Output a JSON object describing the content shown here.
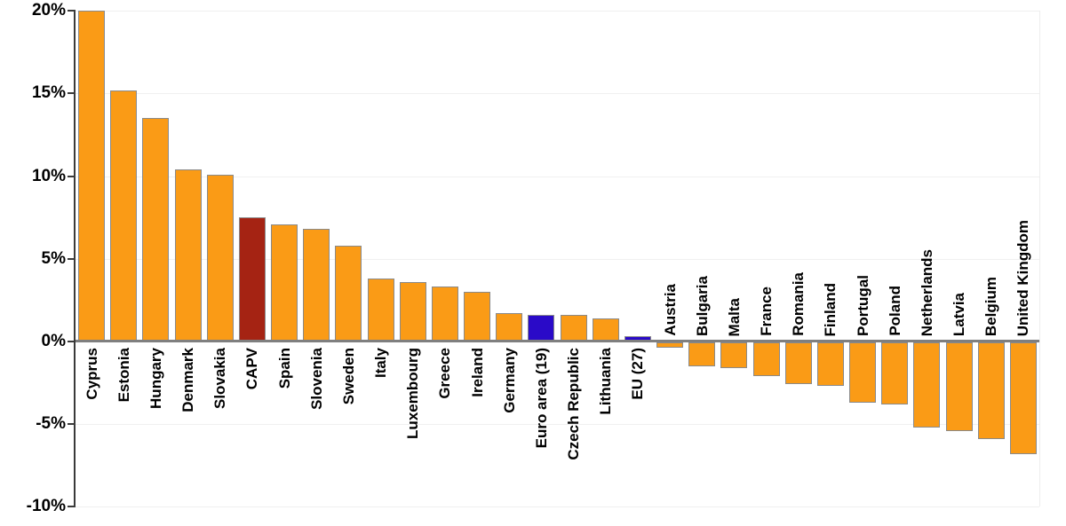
{
  "chart_data": {
    "type": "bar",
    "title": "",
    "xlabel": "",
    "ylabel": "",
    "unit": "%",
    "ylim": [
      -10,
      20
    ],
    "yticks": [
      20,
      15,
      10,
      5,
      0,
      -5,
      -10
    ],
    "ytick_labels": [
      "20%",
      "15%",
      "10%",
      "5%",
      "0%",
      "-5%",
      "-10%"
    ],
    "grid": true,
    "legend": "none",
    "bars": [
      {
        "label": "Cyprus",
        "value": 20.0,
        "color": "orange"
      },
      {
        "label": "Estonia",
        "value": 15.2,
        "color": "orange"
      },
      {
        "label": "Hungary",
        "value": 13.5,
        "color": "orange"
      },
      {
        "label": "Denmark",
        "value": 10.4,
        "color": "orange"
      },
      {
        "label": "Slovakia",
        "value": 10.1,
        "color": "orange"
      },
      {
        "label": "CAPV",
        "value": 7.5,
        "color": "red"
      },
      {
        "label": "Spain",
        "value": 7.1,
        "color": "orange"
      },
      {
        "label": "Slovenia",
        "value": 6.8,
        "color": "orange"
      },
      {
        "label": "Sweden",
        "value": 5.8,
        "color": "orange"
      },
      {
        "label": "Italy",
        "value": 3.8,
        "color": "orange"
      },
      {
        "label": "Luxembourg",
        "value": 3.6,
        "color": "orange"
      },
      {
        "label": "Greece",
        "value": 3.3,
        "color": "orange"
      },
      {
        "label": "Ireland",
        "value": 3.0,
        "color": "orange"
      },
      {
        "label": "Germany",
        "value": 1.7,
        "color": "orange"
      },
      {
        "label": "Euro area (19)",
        "value": 1.6,
        "color": "blue"
      },
      {
        "label": "Czech Republic",
        "value": 1.6,
        "color": "orange"
      },
      {
        "label": "Lithuania",
        "value": 1.4,
        "color": "orange"
      },
      {
        "label": "EU (27)",
        "value": 0.3,
        "color": "blue"
      },
      {
        "label": "Austria",
        "value": -0.4,
        "color": "orange"
      },
      {
        "label": "Bulgaria",
        "value": -1.5,
        "color": "orange"
      },
      {
        "label": "Malta",
        "value": -1.6,
        "color": "orange"
      },
      {
        "label": "France",
        "value": -2.1,
        "color": "orange"
      },
      {
        "label": "Romania",
        "value": -2.6,
        "color": "orange"
      },
      {
        "label": "Finland",
        "value": -2.7,
        "color": "orange"
      },
      {
        "label": "Portugal",
        "value": -3.7,
        "color": "orange"
      },
      {
        "label": "Poland",
        "value": -3.8,
        "color": "orange"
      },
      {
        "label": "Netherlands",
        "value": -5.2,
        "color": "orange"
      },
      {
        "label": "Latvia",
        "value": -5.4,
        "color": "orange"
      },
      {
        "label": "Belgium",
        "value": -5.9,
        "color": "orange"
      },
      {
        "label": "United Kingdom",
        "value": -6.8,
        "color": "orange"
      }
    ],
    "colors": {
      "orange": "#FA9B16",
      "red": "#A52313",
      "blue": "#2A0AC8",
      "bar_border": "#8A8A8A",
      "axis": "#3A3A3A",
      "baseline": "#7F7F7F",
      "gridline": "#F0F0F0",
      "text": "#000000",
      "background": "#FFFFFF"
    }
  }
}
